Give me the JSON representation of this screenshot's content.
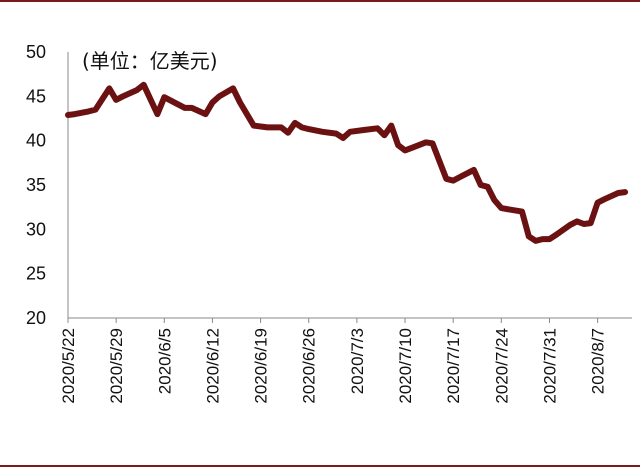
{
  "chart_data": {
    "type": "line",
    "unit_note": "(单位：亿美元)",
    "ylim": [
      20,
      50
    ],
    "y_ticks": [
      20,
      25,
      30,
      35,
      40,
      45,
      50
    ],
    "x_tick_labels": [
      "2020/5/22",
      "2020/5/29",
      "2020/6/5",
      "2020/6/12",
      "2020/6/19",
      "2020/6/26",
      "2020/7/3",
      "2020/7/10",
      "2020/7/17",
      "2020/7/24",
      "2020/7/31",
      "2020/8/7"
    ],
    "series_color": "#6b1111",
    "series": [
      {
        "values": [
          [
            "2020-05-22",
            42.9
          ],
          [
            "2020-05-23",
            43.0
          ],
          [
            "2020-05-25",
            43.3
          ],
          [
            "2020-05-26",
            43.5
          ],
          [
            "2020-05-28",
            45.9
          ],
          [
            "2020-05-29",
            44.6
          ],
          [
            "2020-05-30",
            45.0
          ],
          [
            "2020-06-01",
            45.7
          ],
          [
            "2020-06-02",
            46.3
          ],
          [
            "2020-06-04",
            43.0
          ],
          [
            "2020-06-05",
            44.9
          ],
          [
            "2020-06-06",
            44.5
          ],
          [
            "2020-06-08",
            43.7
          ],
          [
            "2020-06-09",
            43.7
          ],
          [
            "2020-06-11",
            43.0
          ],
          [
            "2020-06-12",
            44.3
          ],
          [
            "2020-06-13",
            45.0
          ],
          [
            "2020-06-15",
            45.9
          ],
          [
            "2020-06-16",
            44.3
          ],
          [
            "2020-06-18",
            41.7
          ],
          [
            "2020-06-20",
            41.5
          ],
          [
            "2020-06-22",
            41.5
          ],
          [
            "2020-06-23",
            40.9
          ],
          [
            "2020-06-24",
            42.0
          ],
          [
            "2020-06-25",
            41.5
          ],
          [
            "2020-06-26",
            41.3
          ],
          [
            "2020-06-28",
            41.0
          ],
          [
            "2020-06-30",
            40.8
          ],
          [
            "2020-07-01",
            40.3
          ],
          [
            "2020-07-02",
            41.0
          ],
          [
            "2020-07-04",
            41.2
          ],
          [
            "2020-07-06",
            41.4
          ],
          [
            "2020-07-07",
            40.6
          ],
          [
            "2020-07-08",
            41.7
          ],
          [
            "2020-07-09",
            39.5
          ],
          [
            "2020-07-10",
            38.9
          ],
          [
            "2020-07-11",
            39.2
          ],
          [
            "2020-07-13",
            39.8
          ],
          [
            "2020-07-14",
            39.7
          ],
          [
            "2020-07-16",
            35.7
          ],
          [
            "2020-07-17",
            35.5
          ],
          [
            "2020-07-18",
            35.9
          ],
          [
            "2020-07-20",
            36.7
          ],
          [
            "2020-07-21",
            35.0
          ],
          [
            "2020-07-22",
            34.8
          ],
          [
            "2020-07-23",
            33.3
          ],
          [
            "2020-07-24",
            32.4
          ],
          [
            "2020-07-27",
            32.0
          ],
          [
            "2020-07-28",
            29.2
          ],
          [
            "2020-07-29",
            28.7
          ],
          [
            "2020-07-30",
            28.9
          ],
          [
            "2020-07-31",
            28.9
          ],
          [
            "2020-08-01",
            29.4
          ],
          [
            "2020-08-03",
            30.5
          ],
          [
            "2020-08-04",
            30.9
          ],
          [
            "2020-08-05",
            30.6
          ],
          [
            "2020-08-06",
            30.7
          ],
          [
            "2020-08-07",
            33.0
          ],
          [
            "2020-08-08",
            33.4
          ],
          [
            "2020-08-10",
            34.1
          ],
          [
            "2020-08-11",
            34.2
          ]
        ]
      }
    ]
  }
}
